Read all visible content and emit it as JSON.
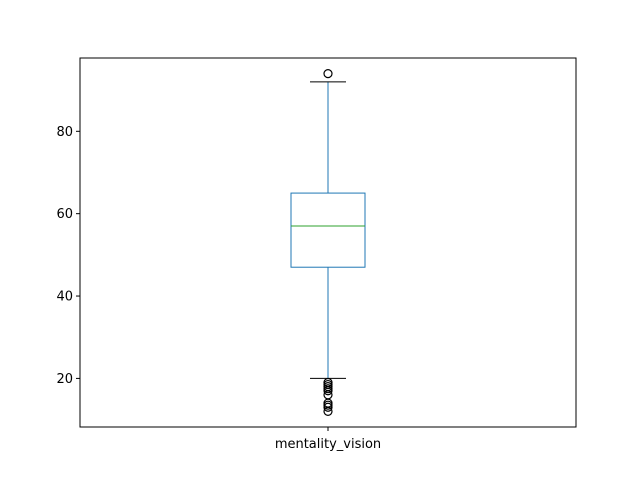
{
  "chart_data": {
    "type": "box",
    "title": "",
    "xlabel": "",
    "ylabel": "",
    "categories": [
      "mentality_vision"
    ],
    "ylim": [
      8.2,
      97.8
    ],
    "yticks": [
      20,
      40,
      60,
      80
    ],
    "grid": false,
    "legend": "none",
    "boxes": [
      {
        "category": "mentality_vision",
        "whisker_low": 20,
        "q1": 47,
        "median": 57,
        "q3": 65,
        "whisker_high": 92,
        "outliers": [
          94,
          19,
          18.5,
          18,
          17.5,
          17,
          16,
          14,
          13.5,
          13,
          12
        ]
      }
    ],
    "colors": {
      "box": "#1f77b4",
      "median": "#2ca02c",
      "whisker": "#1f77b4",
      "cap": "#000000",
      "flier": "#000000"
    }
  }
}
